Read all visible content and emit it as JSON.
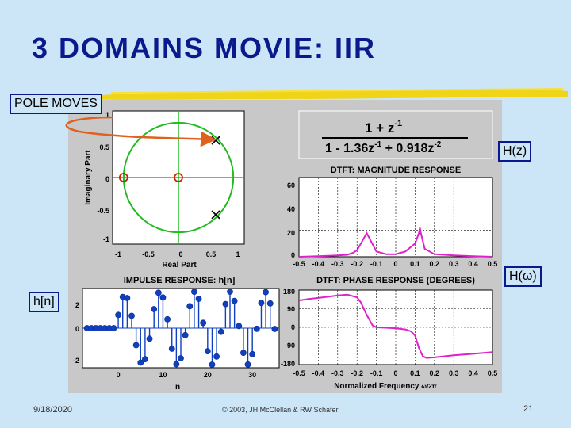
{
  "slide": {
    "title": "3 DOMAINS MOVIE: IIR",
    "footer": {
      "date": "9/18/2020",
      "copyright": "© 2003, JH McClellan & RW Schafer",
      "page": "21"
    }
  },
  "tags": {
    "pole_moves": "POLE MOVES",
    "hz": "H(z)",
    "hw": "H(ω)",
    "hn": "h[n]"
  },
  "pz_plot": {
    "xlabel": "Real Part",
    "ylabel": "Imaginary Part",
    "xticks": [
      "-1",
      "-0.5",
      "0",
      "0.5",
      "1"
    ],
    "yticks": [
      "1",
      "0.5",
      "0",
      "-0.5",
      "-1"
    ]
  },
  "formula": {
    "numerator": "1 + z",
    "numerator_sup": "-1",
    "denominator": "1 - 1.36z",
    "denominator_sup1": "-1",
    "denominator_mid": " + 0.918z",
    "denominator_sup2": "-2"
  },
  "mag_plot": {
    "title": "DTFT:  MAGNITUDE RESPONSE",
    "yticks": [
      "60",
      "40",
      "20",
      "0"
    ],
    "xticks": [
      "-0.5",
      "-0.4",
      "-0.3",
      "-0.2",
      "-0.1",
      "0",
      "0.1",
      "0.2",
      "0.3",
      "0.4",
      "0.5"
    ]
  },
  "phase_plot": {
    "title": "DTFT:  PHASE RESPONSE (DEGREES)",
    "yticks": [
      "180",
      "90",
      "0",
      "-90",
      "-180"
    ],
    "xticks": [
      "-0.5",
      "-0.4",
      "-0.3",
      "-0.2",
      "-0.1",
      "0",
      "0.1",
      "0.2",
      "0.3",
      "0.4",
      "0.5"
    ],
    "xlabel": "Normalized Frequency",
    "xlabel_unit": "ω/2π"
  },
  "impulse_plot": {
    "title": "IMPULSE RESPONSE:  h[n]",
    "yticks": [
      "2",
      "0",
      "-2"
    ],
    "xticks": [
      "0",
      "10",
      "20",
      "30"
    ],
    "xlabel": "n"
  },
  "colors": {
    "title": "#0a1a8c",
    "tag_border": "#0a1a8c",
    "circle": "#22bb22",
    "pole": "#000000",
    "zero": "#cc2200",
    "magnitude": "#dd22cc",
    "phase": "#dd22cc",
    "stem": "#1040c0",
    "arrow": "#e06020"
  },
  "chart_data": [
    {
      "type": "scatter",
      "name_key": "pole-zero",
      "poles": [
        {
          "re": 0.68,
          "im": 0.67
        },
        {
          "re": 0.68,
          "im": -0.67
        }
      ],
      "zeros": [
        {
          "re": -1,
          "im": 0
        },
        {
          "re": 0,
          "im": 0
        }
      ],
      "xlim": [
        -1.2,
        1.2
      ],
      "ylim": [
        -1.2,
        1.2
      ]
    },
    {
      "type": "line",
      "name_key": "magnitude",
      "x": [
        -0.5,
        -0.4,
        -0.3,
        -0.25,
        -0.22,
        -0.2,
        -0.18,
        -0.15,
        -0.1,
        -0.05,
        0,
        0.05,
        0.1,
        0.12,
        0.125,
        0.13,
        0.15,
        0.2,
        0.3,
        0.4,
        0.5
      ],
      "y": [
        0,
        0.5,
        1,
        1.5,
        3,
        5,
        10,
        18,
        4,
        2,
        2,
        4,
        10,
        18,
        22,
        18,
        6,
        2,
        1,
        0.5,
        0
      ],
      "xlim": [
        -0.5,
        0.5
      ],
      "ylim": [
        0,
        60
      ]
    },
    {
      "type": "line",
      "name_key": "phase",
      "x": [
        -0.5,
        -0.45,
        -0.4,
        -0.35,
        -0.3,
        -0.25,
        -0.2,
        -0.18,
        -0.15,
        -0.12,
        -0.1,
        -0.05,
        0,
        0.05,
        0.08,
        0.1,
        0.12,
        0.14,
        0.16,
        0.2,
        0.3,
        0.4,
        0.5
      ],
      "y": [
        130,
        137,
        142,
        148,
        154,
        158,
        145,
        120,
        60,
        10,
        0,
        -2,
        -5,
        -10,
        -20,
        -40,
        -100,
        -140,
        -148,
        -145,
        -135,
        -128,
        -120
      ],
      "xlim": [
        -0.5,
        0.5
      ],
      "ylim": [
        -180,
        180
      ]
    },
    {
      "type": "scatter",
      "name_key": "impulse",
      "n": [
        -7,
        -6,
        -5,
        -4,
        -3,
        -2,
        -1,
        0,
        1,
        2,
        3,
        4,
        5,
        6,
        7,
        8,
        9,
        10,
        11,
        12,
        13,
        14,
        15,
        16,
        17,
        18,
        19,
        20,
        21,
        22,
        23,
        24,
        25,
        26,
        27,
        28,
        29,
        30,
        31,
        32,
        33,
        34,
        35
      ],
      "h": [
        0,
        0,
        0,
        0,
        0,
        0,
        0,
        1.0,
        2.36,
        2.28,
        0.93,
        -1.29,
        -2.61,
        -2.35,
        -0.8,
        1.44,
        2.68,
        2.32,
        0.67,
        -1.56,
        -2.73,
        -2.28,
        -0.53,
        1.66,
        2.75,
        2.22,
        0.4,
        -1.75,
        -2.76,
        -2.15,
        -0.28,
        1.82,
        2.76,
        2.06,
        0.16,
        -1.87,
        -2.75,
        -1.97,
        -0.05,
        1.91,
        2.72,
        1.87,
        -0.06
      ],
      "xlim": [
        -8,
        36
      ],
      "ylim": [
        -3,
        3
      ]
    }
  ]
}
